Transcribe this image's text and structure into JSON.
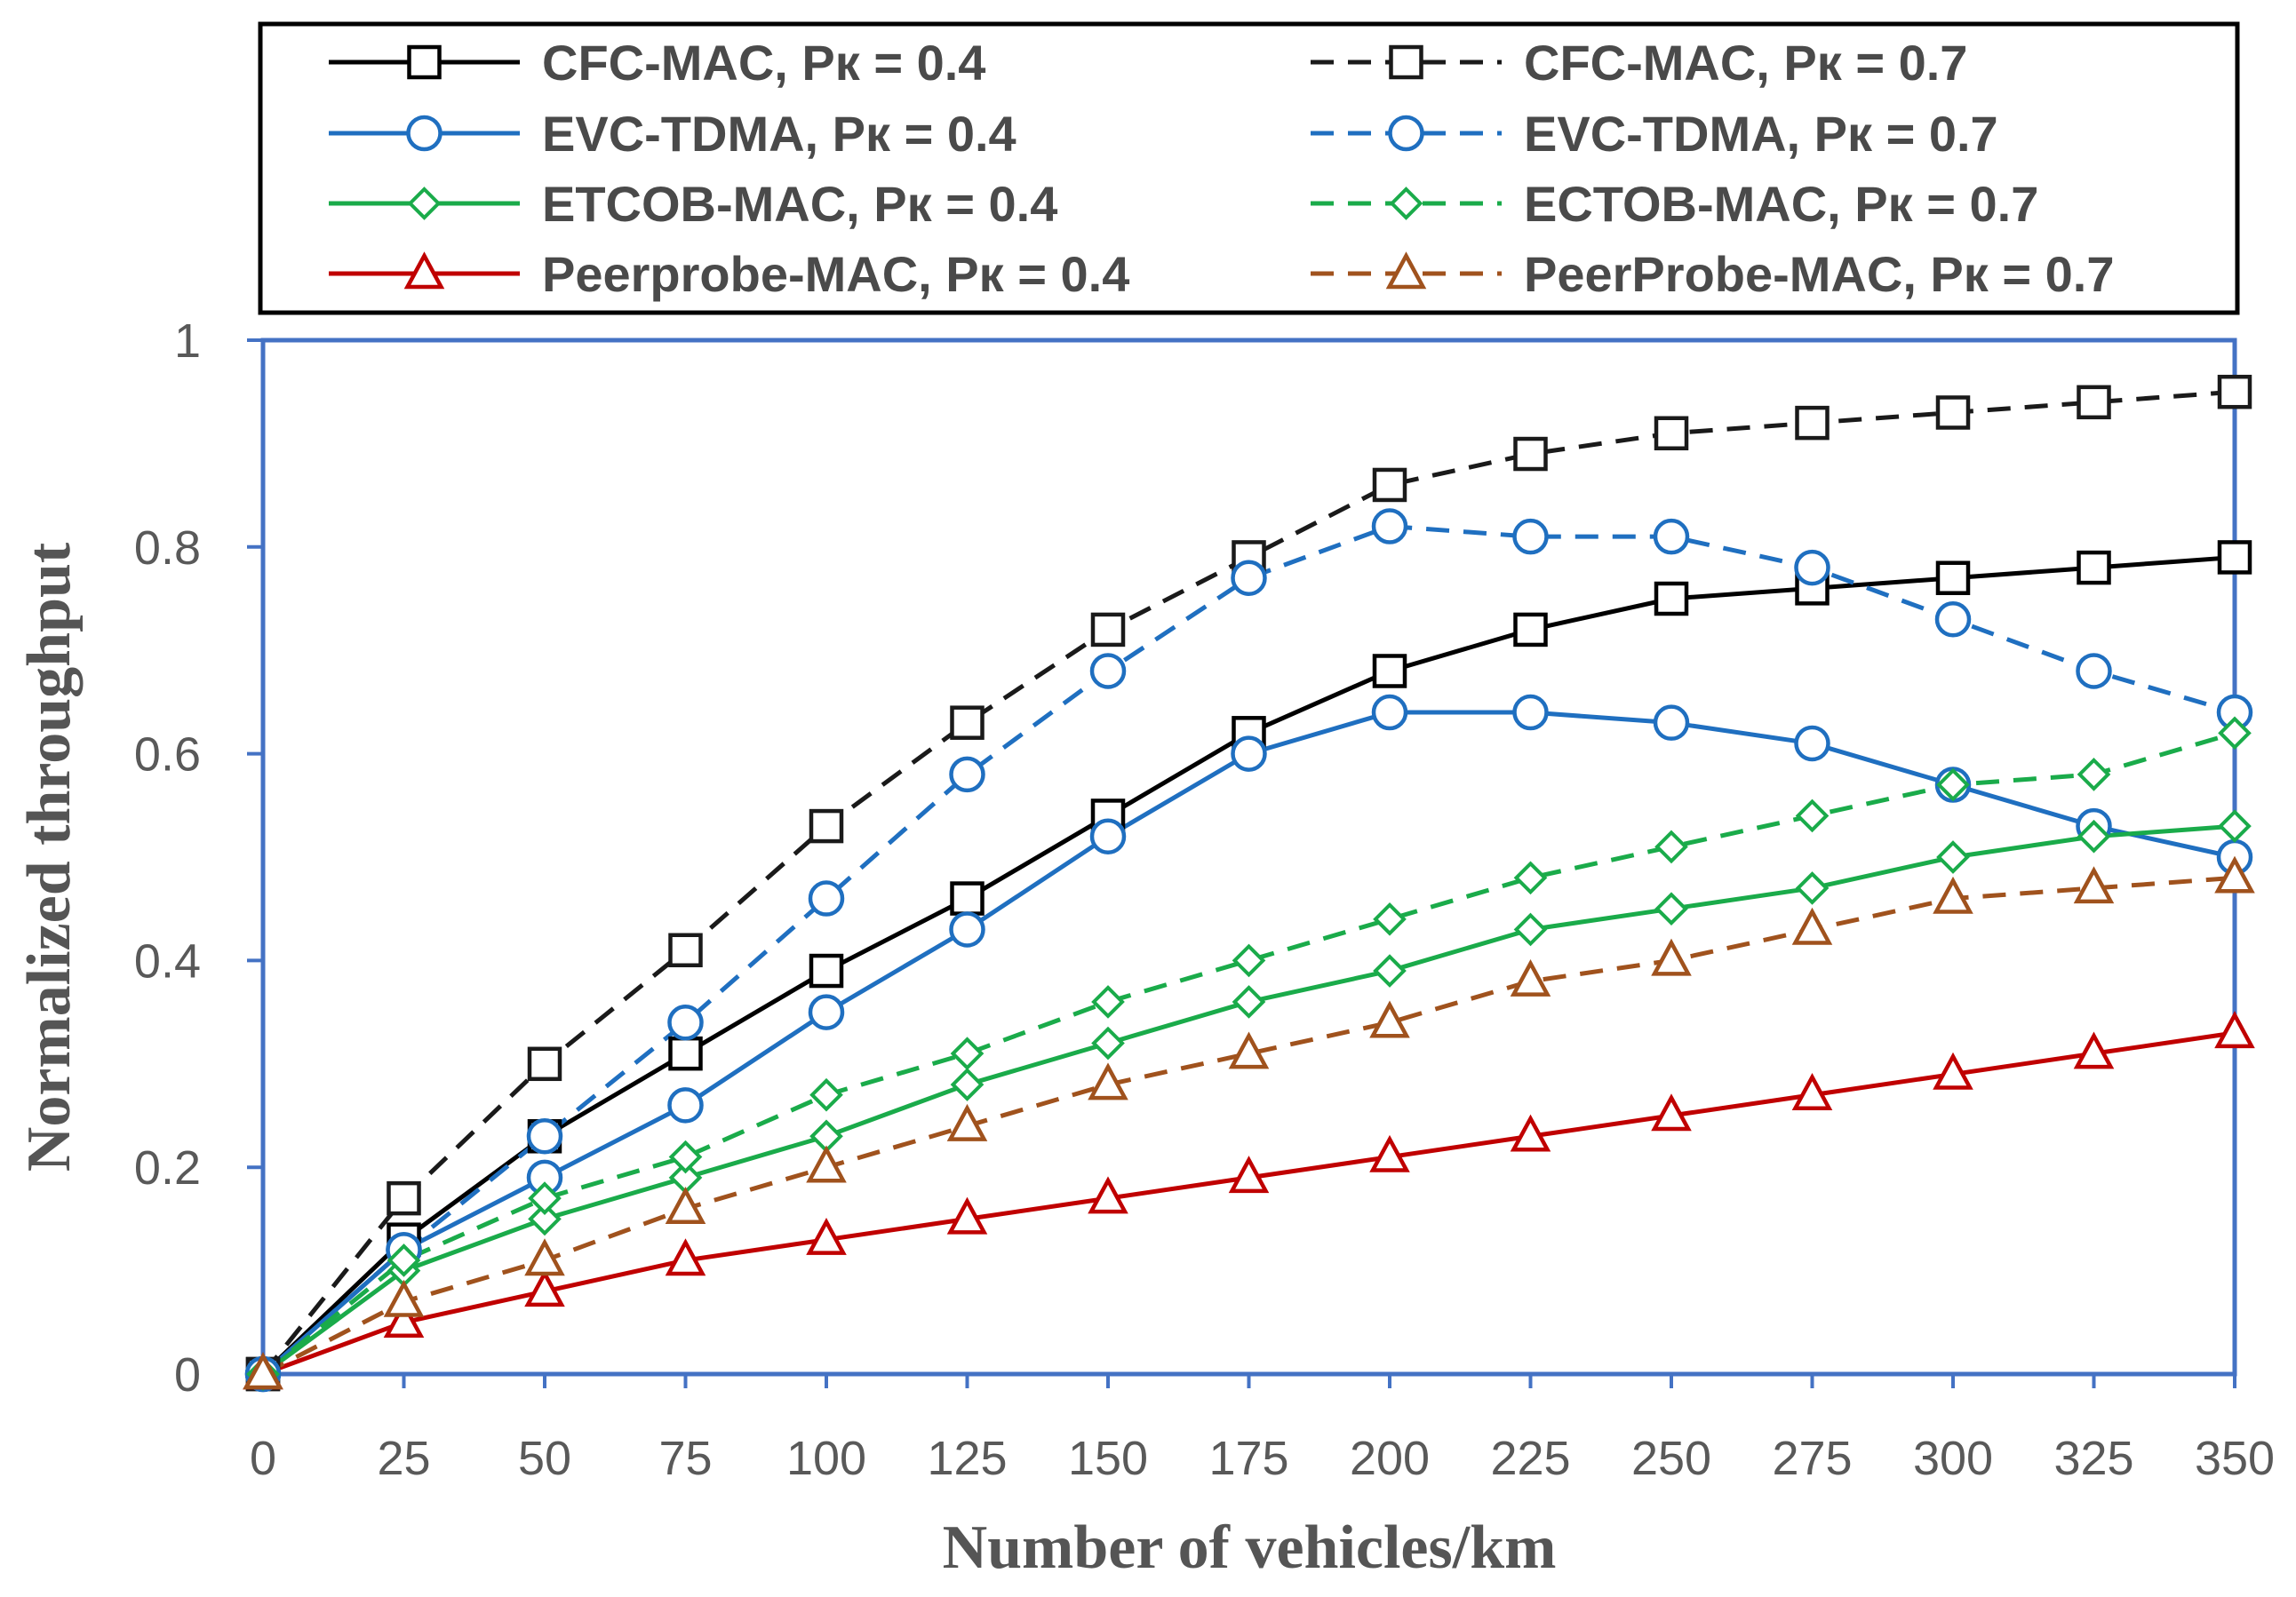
{
  "chart_data": {
    "type": "line",
    "title": "",
    "xlabel": "Number of vehicles/km",
    "ylabel": "Normalized throughput",
    "x": [
      0,
      25,
      50,
      75,
      100,
      125,
      150,
      175,
      200,
      225,
      250,
      275,
      300,
      325,
      350
    ],
    "xlim": [
      0,
      350
    ],
    "ylim": [
      0,
      1
    ],
    "xticks": [
      "0",
      "25",
      "50",
      "75",
      "100",
      "125",
      "150",
      "175",
      "200",
      "225",
      "250",
      "275",
      "300",
      "325",
      "350"
    ],
    "yticks": [
      "0",
      "0.2",
      "0.4",
      "0.6",
      "0.8",
      "1"
    ],
    "grid": false,
    "legend_position": "top",
    "series": [
      {
        "name": "CFC-MAC, Pк = 0.4",
        "color": "#000000",
        "dash": "solid",
        "marker": "square",
        "values": [
          0,
          0.13,
          0.23,
          0.31,
          0.39,
          0.46,
          0.54,
          0.62,
          0.68,
          0.72,
          0.75,
          0.76,
          0.77,
          0.78,
          0.79
        ]
      },
      {
        "name": "CFC-MAC, Pк = 0.7",
        "color": "#1a1a1a",
        "dash": "dashed",
        "marker": "square",
        "values": [
          0,
          0.17,
          0.3,
          0.41,
          0.53,
          0.63,
          0.72,
          0.79,
          0.86,
          0.89,
          0.91,
          0.92,
          0.93,
          0.94,
          0.95
        ]
      },
      {
        "name": "EVC-TDMA, Pк = 0.4",
        "color": "#1f6fc0",
        "dash": "solid",
        "marker": "circle",
        "values": [
          0,
          0.12,
          0.19,
          0.26,
          0.35,
          0.43,
          0.52,
          0.6,
          0.64,
          0.64,
          0.63,
          0.61,
          0.57,
          0.53,
          0.5
        ]
      },
      {
        "name": "EVC-TDMA, Pк = 0.7",
        "color": "#1f6fc0",
        "dash": "dashed",
        "marker": "circle",
        "values": [
          0,
          0.12,
          0.23,
          0.34,
          0.46,
          0.58,
          0.68,
          0.77,
          0.82,
          0.81,
          0.81,
          0.78,
          0.73,
          0.68,
          0.64
        ]
      },
      {
        "name": "ETCOB-MAC, Pк = 0.4",
        "color": "#1aab4a",
        "dash": "solid",
        "marker": "diamond",
        "values": [
          0,
          0.1,
          0.15,
          0.19,
          0.23,
          0.28,
          0.32,
          0.36,
          0.39,
          0.43,
          0.45,
          0.47,
          0.5,
          0.52,
          0.53
        ]
      },
      {
        "name": "ECTOB-MAC, Pк = 0.7",
        "color": "#1aab4a",
        "dash": "dashed",
        "marker": "diamond",
        "values": [
          0,
          0.11,
          0.17,
          0.21,
          0.27,
          0.31,
          0.36,
          0.4,
          0.44,
          0.48,
          0.51,
          0.54,
          0.57,
          0.58,
          0.62
        ]
      },
      {
        "name": "Peerprobe-MAC, Pк = 0.4",
        "color": "#c00000",
        "dash": "solid",
        "marker": "triangle",
        "values": [
          0,
          0.05,
          0.08,
          0.11,
          0.13,
          0.15,
          0.17,
          0.19,
          0.21,
          0.23,
          0.25,
          0.27,
          0.29,
          0.31,
          0.33
        ]
      },
      {
        "name": "PeerProbe-MAC, Pк = 0.7",
        "color": "#a0521d",
        "dash": "dashed",
        "marker": "triangle",
        "values": [
          0,
          0.07,
          0.11,
          0.16,
          0.2,
          0.24,
          0.28,
          0.31,
          0.34,
          0.38,
          0.4,
          0.43,
          0.46,
          0.47,
          0.48
        ]
      }
    ],
    "legend_order": [
      0,
      1,
      2,
      3,
      4,
      5,
      6,
      7
    ]
  }
}
